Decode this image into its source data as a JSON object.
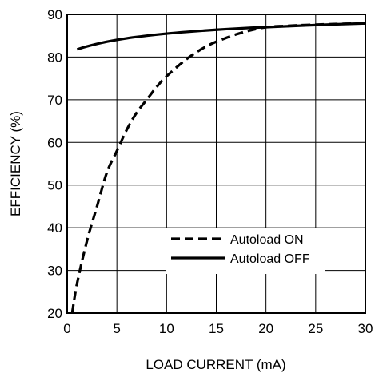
{
  "chart_data": {
    "type": "line",
    "title": "",
    "xlabel": "LOAD CURRENT (mA)",
    "ylabel": "EFFICIENCY (%)",
    "xlim": [
      0,
      30
    ],
    "ylim": [
      20,
      90
    ],
    "x_ticks": [
      0,
      5,
      10,
      15,
      20,
      25,
      30
    ],
    "y_ticks": [
      20,
      30,
      40,
      50,
      60,
      70,
      80,
      90
    ],
    "grid": true,
    "legend_position": "lower-right",
    "series": [
      {
        "name": "Autoload ON",
        "style": "dashed",
        "color": "#000000",
        "x": [
          0.5,
          1,
          2,
          3,
          4,
          5,
          6,
          7,
          8,
          9,
          10,
          12,
          14,
          16,
          18,
          20,
          22,
          25,
          28,
          30
        ],
        "y": [
          20,
          27,
          37,
          45,
          53,
          58,
          63,
          67,
          70,
          73,
          75.5,
          79.5,
          82.5,
          84.5,
          86,
          87,
          87.3,
          87.6,
          87.8,
          87.9
        ]
      },
      {
        "name": "Autoload OFF",
        "style": "solid",
        "color": "#000000",
        "x": [
          1,
          2,
          4,
          6,
          8,
          10,
          12,
          15,
          18,
          20,
          25,
          30
        ],
        "y": [
          81.8,
          82.5,
          83.6,
          84.4,
          85.0,
          85.5,
          85.9,
          86.4,
          86.8,
          87.0,
          87.5,
          87.9
        ]
      }
    ]
  }
}
